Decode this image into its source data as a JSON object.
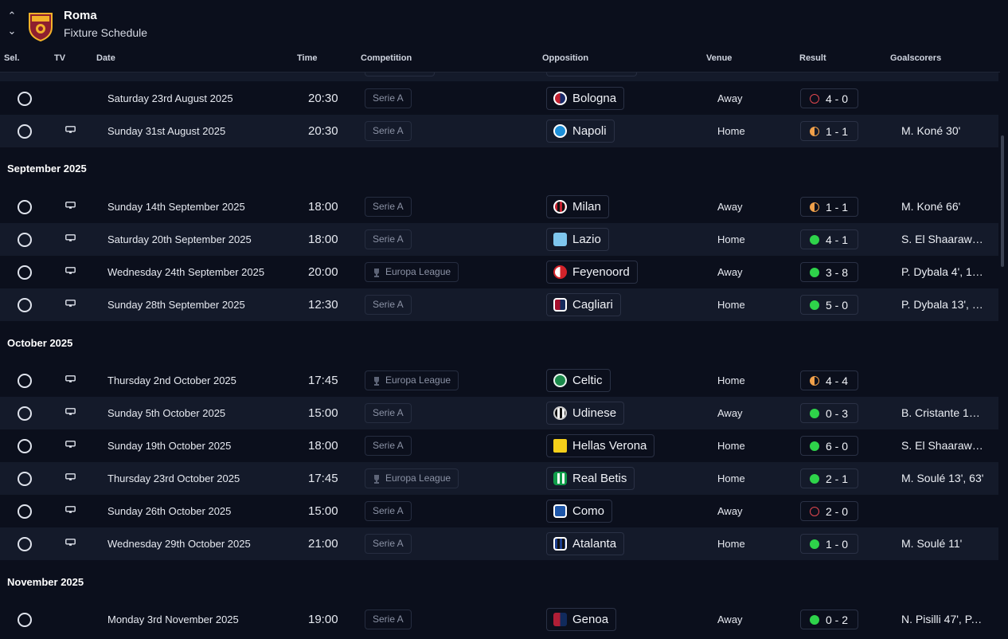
{
  "header": {
    "team_name": "Roma",
    "page_title": "Fixture Schedule"
  },
  "columns": {
    "sel": "Sel.",
    "tv": "TV",
    "date": "Date",
    "time": "Time",
    "competition": "Competition",
    "opposition": "Opposition",
    "venue": "Venue",
    "result": "Result",
    "goalscorers": "Goalscorers"
  },
  "colors": {
    "background": "#0b0f1c",
    "row_alt": "#141a2a",
    "win": "#2ed34a",
    "draw": "#f0a04a",
    "loss": "#e2484f"
  },
  "months": [
    {
      "label": ""
    },
    {
      "label": "September 2025"
    },
    {
      "label": "October 2025"
    },
    {
      "label": "November 2025"
    }
  ],
  "fixtures": [
    {
      "month": 0,
      "date": "Saturday 23rd August 2025",
      "tv": false,
      "time": "20:30",
      "competition": "Serie A",
      "europa": false,
      "opponent": "Bologna",
      "badge": "bologna-badge",
      "venue": "Away",
      "outcome": "l",
      "score": "4 - 0",
      "scorers": ""
    },
    {
      "month": 0,
      "date": "Sunday 31st August 2025",
      "tv": true,
      "time": "20:30",
      "competition": "Serie A",
      "europa": false,
      "opponent": "Napoli",
      "badge": "napoli-badge",
      "venue": "Home",
      "outcome": "d",
      "score": "1 - 1",
      "scorers": "M. Koné 30'"
    },
    {
      "month": 1,
      "date": "Sunday 14th September 2025",
      "tv": true,
      "time": "18:00",
      "competition": "Serie A",
      "europa": false,
      "opponent": "Milan",
      "badge": "milan-badge",
      "venue": "Away",
      "outcome": "d",
      "score": "1 - 1",
      "scorers": "M. Koné 66'"
    },
    {
      "month": 1,
      "date": "Saturday 20th September 2025",
      "tv": true,
      "time": "18:00",
      "competition": "Serie A",
      "europa": false,
      "opponent": "Lazio",
      "badge": "lazio-badge",
      "venue": "Home",
      "outcome": "w",
      "score": "4 - 1",
      "scorers": "S. El Shaaraw…"
    },
    {
      "month": 1,
      "date": "Wednesday 24th September 2025",
      "tv": true,
      "time": "20:00",
      "competition": "Europa League",
      "europa": true,
      "opponent": "Feyenoord",
      "badge": "feyenoord-badge",
      "venue": "Away",
      "outcome": "w",
      "score": "3 - 8",
      "scorers": "P. Dybala 4', 1…"
    },
    {
      "month": 1,
      "date": "Sunday 28th September 2025",
      "tv": true,
      "time": "12:30",
      "competition": "Serie A",
      "europa": false,
      "opponent": "Cagliari",
      "badge": "cagliari-badge",
      "venue": "Home",
      "outcome": "w",
      "score": "5 - 0",
      "scorers": "P. Dybala 13', …"
    },
    {
      "month": 2,
      "date": "Thursday 2nd October 2025",
      "tv": true,
      "time": "17:45",
      "competition": "Europa League",
      "europa": true,
      "opponent": "Celtic",
      "badge": "celtic-badge",
      "venue": "Home",
      "outcome": "d",
      "score": "4 - 4",
      "scorers": ""
    },
    {
      "month": 2,
      "date": "Sunday 5th October 2025",
      "tv": true,
      "time": "15:00",
      "competition": "Serie A",
      "europa": false,
      "opponent": "Udinese",
      "badge": "udinese-badge",
      "venue": "Away",
      "outcome": "w",
      "score": "0 - 3",
      "scorers": "B. Cristante 1…"
    },
    {
      "month": 2,
      "date": "Sunday 19th October 2025",
      "tv": true,
      "time": "18:00",
      "competition": "Serie A",
      "europa": false,
      "opponent": "Hellas Verona",
      "badge": "hellas-verona-badge",
      "venue": "Home",
      "outcome": "w",
      "score": "6 - 0",
      "scorers": "S. El Shaaraw…"
    },
    {
      "month": 2,
      "date": "Thursday 23rd October 2025",
      "tv": true,
      "time": "17:45",
      "competition": "Europa League",
      "europa": true,
      "opponent": "Real Betis",
      "badge": "real-betis-badge",
      "venue": "Home",
      "outcome": "w",
      "score": "2 - 1",
      "scorers": "M. Soulé 13', 63'"
    },
    {
      "month": 2,
      "date": "Sunday 26th October 2025",
      "tv": true,
      "time": "15:00",
      "competition": "Serie A",
      "europa": false,
      "opponent": "Como",
      "badge": "como-badge",
      "venue": "Away",
      "outcome": "l",
      "score": "2 - 0",
      "scorers": ""
    },
    {
      "month": 2,
      "date": "Wednesday 29th October 2025",
      "tv": true,
      "time": "21:00",
      "competition": "Serie A",
      "europa": false,
      "opponent": "Atalanta",
      "badge": "atalanta-badge",
      "venue": "Home",
      "outcome": "w",
      "score": "1 - 0",
      "scorers": "M. Soulé 11'"
    },
    {
      "month": 3,
      "date": "Monday 3rd November 2025",
      "tv": false,
      "time": "19:00",
      "competition": "Serie A",
      "europa": false,
      "opponent": "Genoa",
      "badge": "genoa-badge",
      "venue": "Away",
      "outcome": "w",
      "score": "0 - 2",
      "scorers": "N. Pisilli 47', P. …"
    }
  ]
}
